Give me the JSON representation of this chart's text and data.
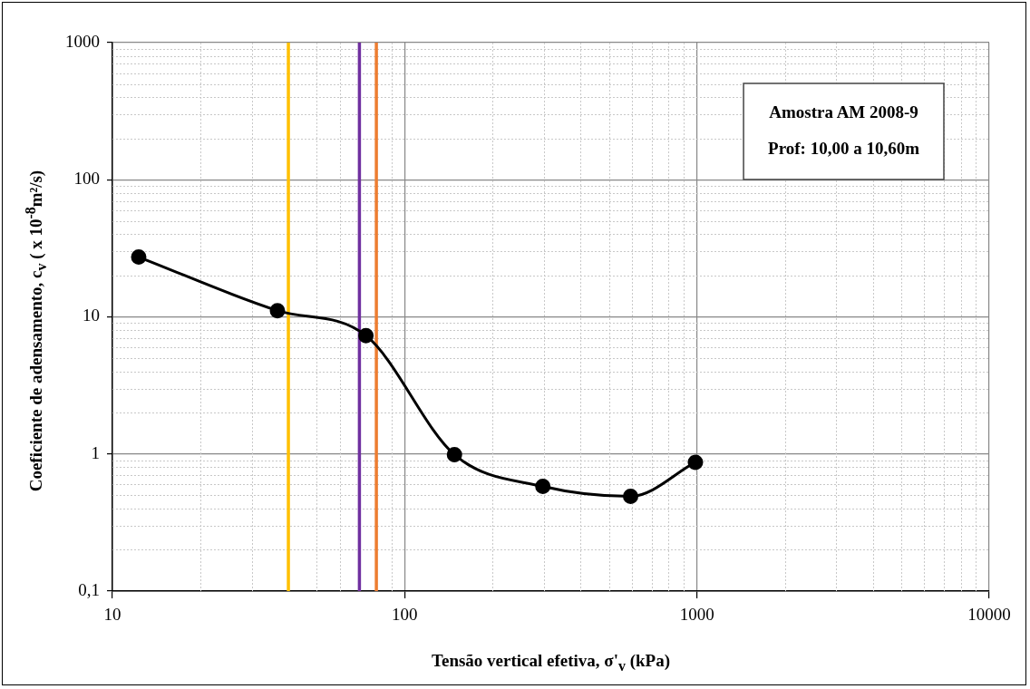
{
  "chart_data": {
    "type": "line",
    "xlabel": "Tensão vertical efetiva, σ'$_{v}$ (kPa)",
    "ylabel": "Coeficiente de adensamento, c$_{v}$ ( x 10$^{-8}$m²/s)",
    "x": [
      12.3,
      36.7,
      73.7,
      148,
      297,
      593,
      988
    ],
    "series": [
      {
        "color": "#000000",
        "values": [
          27.3,
          11.1,
          7.3,
          0.99,
          0.58,
          0.49,
          0.87
        ]
      }
    ],
    "log": "xy",
    "xlim": [
      10,
      10000
    ],
    "xticks": [
      10,
      100,
      1000,
      10000
    ],
    "ylim": [
      0.1,
      1000
    ],
    "yticks": [
      {
        "value": 0.1,
        "label": "0,1"
      },
      1,
      10,
      100,
      1000
    ],
    "grid": true,
    "legend": false,
    "marker": "circle",
    "line_style": "solid",
    "ref_lines": [
      {
        "axis": "x",
        "value": 40,
        "color": "#ffc000"
      },
      {
        "axis": "x",
        "value": 70,
        "color": "#7030a0"
      },
      {
        "axis": "x",
        "value": 80,
        "color": "#ed7d31"
      }
    ],
    "annotations": [
      "Amostra AM 2008-9",
      "Prof: 10,00 a 10,60m"
    ]
  }
}
